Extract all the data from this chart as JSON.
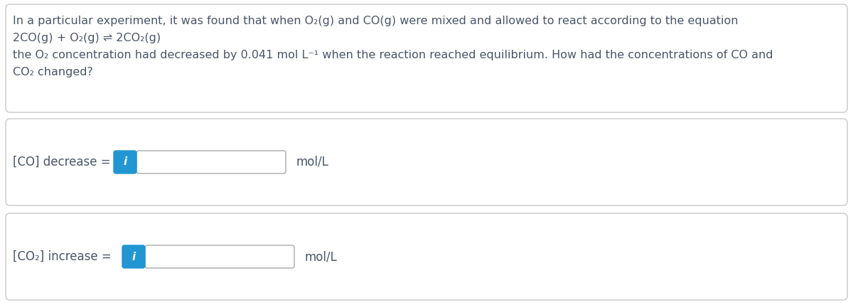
{
  "bg_color": "#ffffff",
  "border_color": "#c8c8c8",
  "text_color": "#4a5568",
  "blue_color": "#2196d3",
  "input_bg": "#ffffff",
  "input_border": "#aaaaaa",
  "paragraph_text_line1": "In a particular experiment, it was found that when O₂(g) and CO(g) were mixed and allowed to react according to the equation",
  "paragraph_text_line2": "2CO(g) + O₂(g) ⇌ 2CO₂(g)",
  "paragraph_text_line3": "the O₂ concentration had decreased by 0.041 mol L⁻¹ when the reaction reached equilibrium. How had the concentrations of CO and",
  "paragraph_text_line4": "CO₂ changed?",
  "label1": "[CO] decrease =",
  "label2": "[CO₂] increase =",
  "unit": "mol/L",
  "info_icon": "i",
  "font_size_para": 11.5,
  "font_size_label": 12.0,
  "font_size_unit": 12.0,
  "font_size_icon": 11,
  "fig_width": 12.0,
  "fig_height": 4.29,
  "dpi": 100
}
